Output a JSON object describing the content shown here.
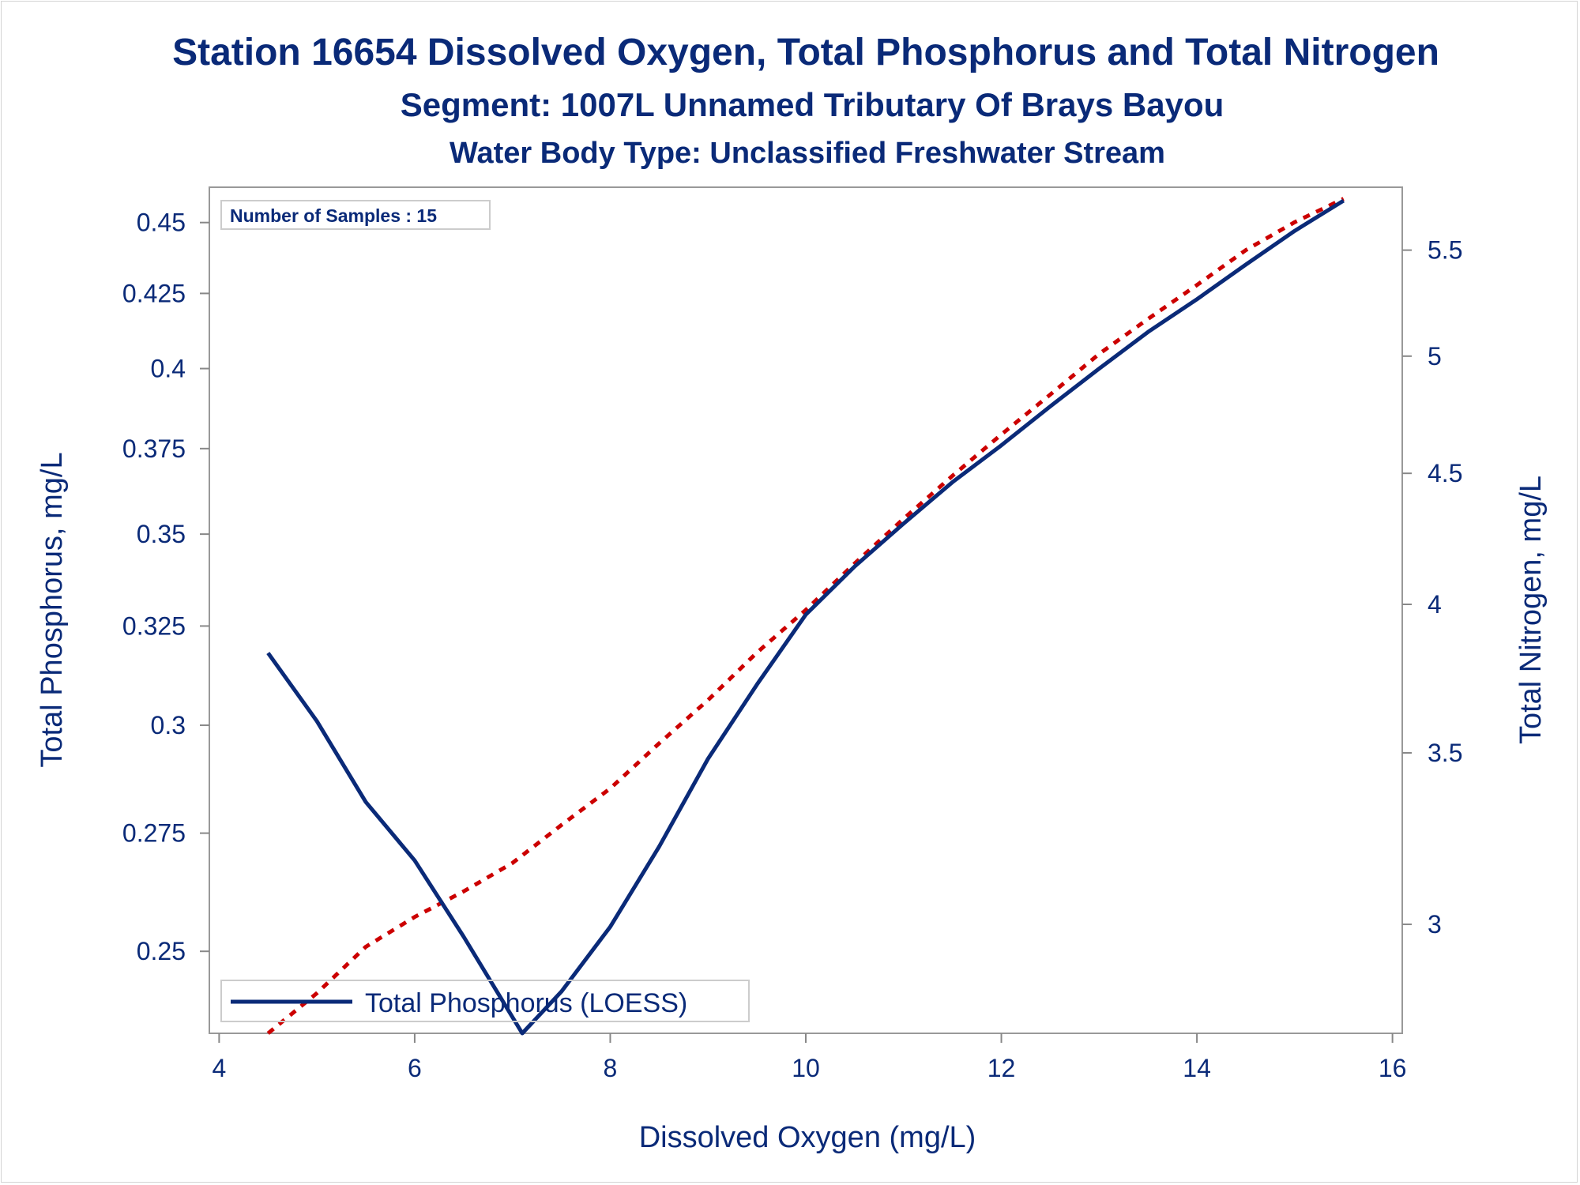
{
  "titles": {
    "line1": "Station 16654  Dissolved Oxygen, Total Phosphorus and Total Nitrogen",
    "line2": "Segment: 1007L  Unnamed Tributary Of Brays Bayou",
    "line3": "Water Body Type: Unclassified Freshwater Stream"
  },
  "inset": {
    "label": "Number of Samples : 15"
  },
  "legend": {
    "label": "Total Phosphorus (LOESS)"
  },
  "colors": {
    "text": "#0a2a78",
    "phosphorus": "#0a2a78",
    "nitrogen": "#cc0000",
    "frame": "#999999"
  },
  "chart_data": {
    "type": "line",
    "xlabel": "Dissolved Oxygen (mg/L)",
    "ylabel": "Total Phosphorus, mg/L",
    "y2label": "Total Nitrogen, mg/L",
    "x_ticks": [
      "4",
      "6",
      "8",
      "10",
      "12",
      "14",
      "16"
    ],
    "y_ticks": [
      "0.25",
      "0.275",
      "0.3",
      "0.325",
      "0.35",
      "0.375",
      "0.4",
      "0.425",
      "0.45"
    ],
    "y2_ticks": [
      "3",
      "3.5",
      "4",
      "4.5",
      "5",
      "5.5"
    ],
    "xlim": [
      3.9,
      16.1
    ],
    "y_scale": "log",
    "ylim": [
      0.234,
      0.463
    ],
    "y2_scale": "log",
    "y2lim": [
      2.72,
      5.82
    ],
    "legend_position": "bottom-left",
    "grid": false,
    "series": [
      {
        "name": "Total Phosphorus (LOESS)",
        "axis": "left",
        "style": "solid",
        "x": [
          4.5,
          5.0,
          5.5,
          6.0,
          6.5,
          7.1,
          7.5,
          8.0,
          8.5,
          9.0,
          9.5,
          10.0,
          10.5,
          11.0,
          11.5,
          12.0,
          12.5,
          13.0,
          13.5,
          14.0,
          14.5,
          15.0,
          15.5
        ],
        "y": [
          0.318,
          0.301,
          0.282,
          0.269,
          0.253,
          0.234,
          0.242,
          0.255,
          0.272,
          0.292,
          0.31,
          0.328,
          0.341,
          0.353,
          0.365,
          0.376,
          0.388,
          0.4,
          0.412,
          0.423,
          0.435,
          0.447,
          0.458
        ]
      },
      {
        "axis": "right",
        "style": "dashed",
        "x": [
          4.5,
          5.0,
          5.5,
          6.0,
          6.5,
          7.0,
          7.5,
          8.0,
          8.5,
          9.0,
          9.5,
          10.0,
          10.5,
          11.0,
          11.5,
          12.0,
          12.5,
          13.0,
          13.5,
          14.0,
          14.5,
          15.0,
          15.5
        ],
        "y": [
          2.72,
          2.82,
          2.94,
          3.02,
          3.09,
          3.17,
          3.28,
          3.39,
          3.53,
          3.67,
          3.83,
          3.98,
          4.15,
          4.32,
          4.49,
          4.66,
          4.83,
          5.01,
          5.17,
          5.33,
          5.5,
          5.64,
          5.76
        ]
      }
    ]
  }
}
